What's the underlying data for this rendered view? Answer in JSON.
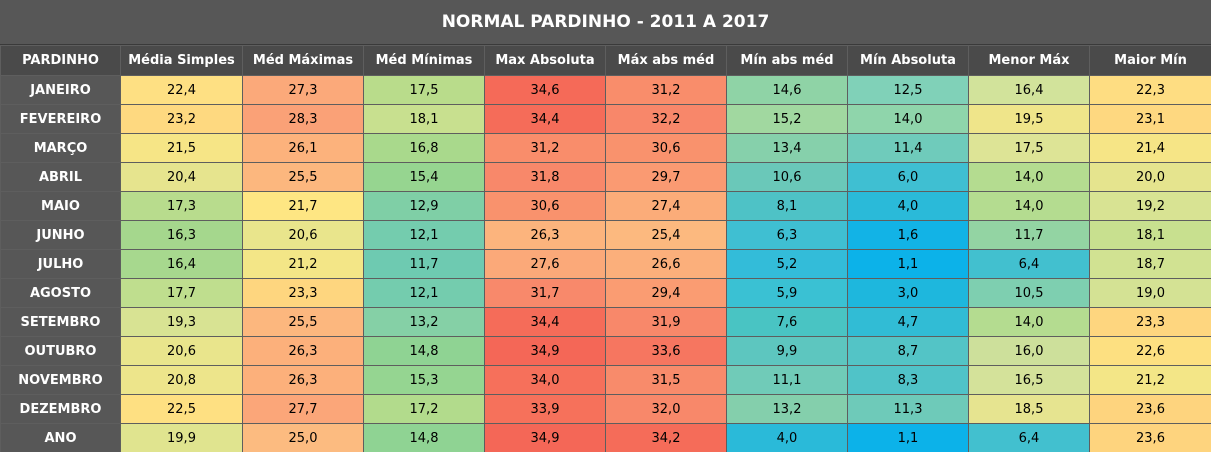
{
  "title": "NORMAL PARDINHO - 2011 A 2017",
  "headers": [
    "PARDINHO",
    "Média Simples",
    "Méd Máximas",
    "Méd Mínimas",
    "Max Absoluta",
    "Máx abs méd",
    "Mín abs méd",
    "Mín Absoluta",
    "Menor Máx",
    "Maior Mín"
  ],
  "rows": [
    {
      "label": "JANEIRO",
      "values": [
        "22,4",
        "27,3",
        "17,5",
        "34,6",
        "31,2",
        "14,6",
        "12,5",
        "16,4",
        "22,3"
      ],
      "colors": [
        "#fee083",
        "#fba97a",
        "#b9dc8b",
        "#f56a58",
        "#f98d6b",
        "#8fd3a6",
        "#80d1b8",
        "#d2e39b",
        "#fedd82"
      ]
    },
    {
      "label": "FEVEREIRO",
      "values": [
        "23,2",
        "28,3",
        "18,1",
        "34,4",
        "32,2",
        "15,2",
        "14,0",
        "19,5",
        "23,1"
      ],
      "colors": [
        "#fed980",
        "#faa177",
        "#c8e08f",
        "#f56c59",
        "#f8876a",
        "#a1d8a0",
        "#8fd5ab",
        "#efe58a",
        "#fed880"
      ]
    },
    {
      "label": "MARÇO",
      "values": [
        "21,5",
        "26,1",
        "16,8",
        "31,2",
        "30,6",
        "13,4",
        "11,4",
        "17,5",
        "21,4"
      ],
      "colors": [
        "#f6e586",
        "#fcb27c",
        "#a9d98c",
        "#f98d6b",
        "#f9926d",
        "#86d0ab",
        "#6fcbbb",
        "#dde496",
        "#f6e586"
      ]
    },
    {
      "label": "ABRIL",
      "values": [
        "20,4",
        "25,5",
        "15,4",
        "31,8",
        "29,7",
        "10,6",
        "6,0",
        "14,0",
        "20,0"
      ],
      "colors": [
        "#e6e48e",
        "#fcb77e",
        "#96d590",
        "#f8886a",
        "#fa9a72",
        "#6ac8b9",
        "#3fbfd2",
        "#b4dc90",
        "#e5e48e"
      ]
    },
    {
      "label": "MAIO",
      "values": [
        "17,3",
        "21,7",
        "12,9",
        "30,6",
        "27,4",
        "8,1",
        "4,0",
        "14,0",
        "19,2"
      ],
      "colors": [
        "#b8dc8d",
        "#fee683",
        "#7fcfa6",
        "#f9926d",
        "#fbac79",
        "#4ec2c6",
        "#2abad9",
        "#b4dc90",
        "#d8e393"
      ]
    },
    {
      "label": "JUNHO",
      "values": [
        "16,3",
        "20,6",
        "12,1",
        "26,3",
        "25,4",
        "6,3",
        "1,6",
        "11,7",
        "18,1"
      ],
      "colors": [
        "#a5d78d",
        "#e9e58c",
        "#74ccae",
        "#fcb47d",
        "#fcb97f",
        "#3fbfd2",
        "#12b3e6",
        "#93d4a3",
        "#c8e08f"
      ]
    },
    {
      "label": "JULHO",
      "values": [
        "16,4",
        "21,2",
        "11,7",
        "27,6",
        "26,6",
        "5,2",
        "1,1",
        "6,4",
        "18,7"
      ],
      "colors": [
        "#a7d88e",
        "#f3e687",
        "#6ecab1",
        "#fba979",
        "#fbaf7b",
        "#33bcd9",
        "#0cb2e9",
        "#42c0cf",
        "#d1e292"
      ]
    },
    {
      "label": "AGOSTO",
      "values": [
        "17,7",
        "23,3",
        "12,1",
        "31,7",
        "29,4",
        "5,9",
        "3,0",
        "10,5",
        "19,0"
      ],
      "colors": [
        "#bfde8e",
        "#fed67f",
        "#74ccae",
        "#f8896b",
        "#fa9c72",
        "#3ac1d3",
        "#1eb7dd",
        "#7ecfb0",
        "#d4e294"
      ]
    },
    {
      "label": "SETEMBRO",
      "values": [
        "19,3",
        "25,5",
        "13,2",
        "34,4",
        "31,9",
        "7,6",
        "4,7",
        "14,0",
        "23,3"
      ],
      "colors": [
        "#d8e393",
        "#fcb77e",
        "#85d0a6",
        "#f56c59",
        "#f8886a",
        "#49c4c3",
        "#31bcd5",
        "#b4dc90",
        "#fed67f"
      ]
    },
    {
      "label": "OUTUBRO",
      "values": [
        "20,6",
        "26,3",
        "14,8",
        "34,9",
        "33,6",
        "9,9",
        "8,7",
        "16,0",
        "22,6"
      ],
      "colors": [
        "#e9e58c",
        "#fcb07b",
        "#8fd393",
        "#f46757",
        "#f67660",
        "#5dc6bf",
        "#53c4c6",
        "#cde09b",
        "#fde081"
      ]
    },
    {
      "label": "NOVEMBRO",
      "values": [
        "20,8",
        "26,3",
        "15,3",
        "34,0",
        "31,5",
        "11,1",
        "8,3",
        "16,5",
        "21,2"
      ],
      "colors": [
        "#ede58b",
        "#fcb07b",
        "#95d591",
        "#f6705b",
        "#f88b6b",
        "#70cbb8",
        "#50c3c8",
        "#d4e29a",
        "#f3e687"
      ]
    },
    {
      "label": "DEZEMBRO",
      "values": [
        "22,5",
        "27,7",
        "17,2",
        "33,9",
        "32,0",
        "13,2",
        "11,3",
        "18,5",
        "23,6"
      ],
      "colors": [
        "#fee082",
        "#fba679",
        "#b2db8c",
        "#f6715b",
        "#f8886a",
        "#84cfac",
        "#6ecab9",
        "#e6e490",
        "#fed47e"
      ]
    },
    {
      "label": "ANO",
      "values": [
        "19,9",
        "25,0",
        "14,8",
        "34,9",
        "34,2",
        "4,0",
        "1,1",
        "6,4",
        "23,6"
      ],
      "colors": [
        "#e0e48f",
        "#fcbb80",
        "#8fd393",
        "#f46757",
        "#f56c59",
        "#2abad9",
        "#0cb2e9",
        "#42c0cf",
        "#fed47e"
      ]
    }
  ]
}
